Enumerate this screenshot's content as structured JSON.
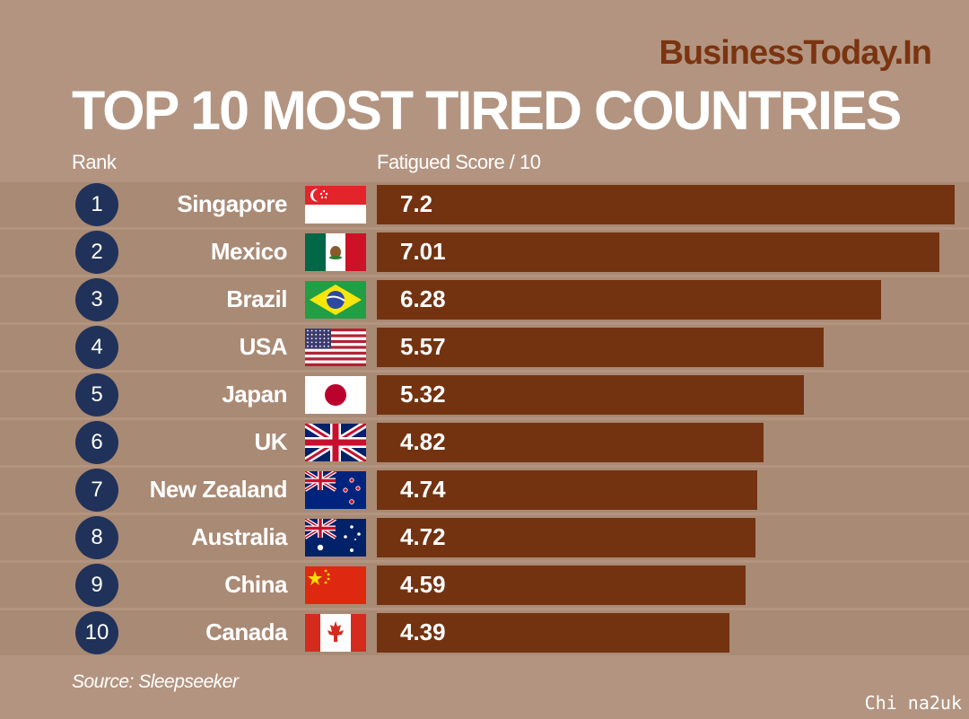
{
  "brand": "BusinessToday.In",
  "watermark": "Chi na2uk",
  "chart_data": {
    "type": "bar",
    "orientation": "horizontal",
    "title": "TOP 10 MOST TIRED COUNTRIES",
    "rank_label": "Rank",
    "value_label": "Fatigued Score / 10",
    "source": "Source: Sleepseeker",
    "xlim": [
      0,
      7.2
    ],
    "ranks": [
      "1",
      "2",
      "3",
      "4",
      "5",
      "6",
      "7",
      "8",
      "9",
      "10"
    ],
    "categories": [
      "Singapore",
      "Mexico",
      "Brazil",
      "USA",
      "Japan",
      "UK",
      "New Zealand",
      "Australia",
      "China",
      "Canada"
    ],
    "values": [
      7.2,
      7.01,
      6.28,
      5.57,
      5.32,
      4.82,
      4.74,
      4.72,
      4.59,
      4.39
    ],
    "value_labels": [
      "7.2",
      "7.01",
      "6.28",
      "5.57",
      "5.32",
      "4.82",
      "4.74",
      "4.72",
      "4.59",
      "4.39"
    ],
    "flags": [
      "singapore-flag",
      "mexico-flag",
      "brazil-flag",
      "usa-flag",
      "japan-flag",
      "uk-flag",
      "new-zealand-flag",
      "australia-flag",
      "china-flag",
      "canada-flag"
    ],
    "bar_color": "#733311",
    "rank_circle_color": "#203259",
    "background_color": "#b29480"
  }
}
